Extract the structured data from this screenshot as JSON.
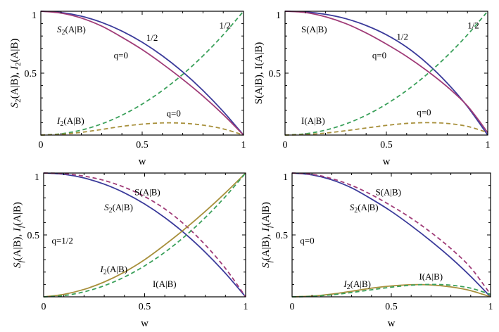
{
  "colors": {
    "blue": "#3a3a9a",
    "magenta": "#a03c78",
    "green": "#3aa05a",
    "olive": "#a8903c"
  },
  "chart_data": [
    {
      "type": "line",
      "panel": "top-left",
      "xlabel": "w",
      "ylabel": "S2(A|B), I2(A|B)",
      "xlim": [
        0,
        1
      ],
      "ylim": [
        0,
        1
      ],
      "xticks": [
        "0",
        "0.5",
        "1"
      ],
      "yticks": [
        "0.5",
        "1"
      ],
      "series": [
        {
          "color": "blue",
          "dash": false,
          "x": [
            0,
            0.1,
            0.2,
            0.3,
            0.4,
            0.5,
            0.6,
            0.7,
            0.8,
            0.9,
            1.0
          ],
          "y": [
            1,
            0.99,
            0.96,
            0.91,
            0.84,
            0.75,
            0.64,
            0.51,
            0.36,
            0.19,
            0
          ]
        },
        {
          "color": "magenta",
          "dash": false,
          "x": [
            0,
            0.1,
            0.2,
            0.3,
            0.4,
            0.5,
            0.6,
            0.7,
            0.8,
            0.9,
            1.0
          ],
          "y": [
            1,
            0.985,
            0.945,
            0.88,
            0.79,
            0.69,
            0.575,
            0.45,
            0.315,
            0.165,
            0
          ]
        },
        {
          "color": "green",
          "dash": true,
          "x": [
            0,
            0.1,
            0.2,
            0.3,
            0.4,
            0.5,
            0.6,
            0.7,
            0.8,
            0.9,
            1.0
          ],
          "y": [
            0,
            0.01,
            0.04,
            0.09,
            0.16,
            0.25,
            0.36,
            0.49,
            0.64,
            0.81,
            1
          ]
        },
        {
          "color": "olive",
          "dash": true,
          "x": [
            0,
            0.1,
            0.2,
            0.3,
            0.4,
            0.5,
            0.6,
            0.7,
            0.8,
            0.9,
            1.0
          ],
          "y": [
            0,
            0.006,
            0.022,
            0.045,
            0.07,
            0.088,
            0.098,
            0.096,
            0.08,
            0.05,
            0
          ]
        }
      ],
      "annotations": [
        {
          "text": "S",
          "sub": "2",
          "rest": "(A|B)",
          "x": 0.08,
          "y": 0.83
        },
        {
          "text": "1/2",
          "x": 0.52,
          "y": 0.76
        },
        {
          "text": "q=0",
          "x": 0.36,
          "y": 0.62
        },
        {
          "text": "1/2",
          "x": 0.88,
          "y": 0.86
        },
        {
          "text": "I",
          "sub": "2",
          "rest": "(A|B)",
          "x": 0.08,
          "y": 0.09
        },
        {
          "text": "q=0",
          "x": 0.62,
          "y": 0.15
        }
      ]
    },
    {
      "type": "line",
      "panel": "top-right",
      "xlabel": "w",
      "ylabel": "S(A|B), I(A|B)",
      "xlim": [
        0,
        1
      ],
      "ylim": [
        0,
        1
      ],
      "xticks": [
        "0",
        "0.5",
        "1"
      ],
      "yticks": [
        "0.5",
        "1"
      ],
      "series": [
        {
          "color": "blue",
          "dash": false,
          "x": [
            0,
            0.1,
            0.2,
            0.3,
            0.4,
            0.5,
            0.6,
            0.7,
            0.8,
            0.9,
            1.0
          ],
          "y": [
            1,
            0.995,
            0.975,
            0.94,
            0.885,
            0.81,
            0.71,
            0.58,
            0.42,
            0.23,
            0
          ]
        },
        {
          "color": "magenta",
          "dash": false,
          "x": [
            0,
            0.1,
            0.2,
            0.3,
            0.4,
            0.5,
            0.6,
            0.7,
            0.8,
            0.9,
            1.0
          ],
          "y": [
            1,
            0.99,
            0.955,
            0.9,
            0.825,
            0.735,
            0.635,
            0.52,
            0.39,
            0.235,
            0.02
          ]
        },
        {
          "color": "green",
          "dash": true,
          "x": [
            0,
            0.1,
            0.2,
            0.3,
            0.4,
            0.5,
            0.6,
            0.7,
            0.8,
            0.9,
            1.0
          ],
          "y": [
            0,
            0.01,
            0.04,
            0.09,
            0.16,
            0.25,
            0.36,
            0.49,
            0.64,
            0.81,
            1
          ]
        },
        {
          "color": "olive",
          "dash": true,
          "x": [
            0,
            0.1,
            0.2,
            0.3,
            0.4,
            0.5,
            0.6,
            0.7,
            0.8,
            0.9,
            1.0
          ],
          "y": [
            0,
            0.004,
            0.016,
            0.035,
            0.057,
            0.078,
            0.094,
            0.1,
            0.094,
            0.07,
            0.02
          ]
        }
      ],
      "annotations": [
        {
          "text": "S(A|B)",
          "x": 0.08,
          "y": 0.83
        },
        {
          "text": "1/2",
          "x": 0.55,
          "y": 0.77
        },
        {
          "text": "q=0",
          "x": 0.43,
          "y": 0.62
        },
        {
          "text": "1/2",
          "x": 0.9,
          "y": 0.86
        },
        {
          "text": "I(A|B)",
          "x": 0.08,
          "y": 0.09
        },
        {
          "text": "q=0",
          "x": 0.65,
          "y": 0.16
        }
      ]
    },
    {
      "type": "line",
      "panel": "bottom-left",
      "xlabel": "w",
      "ylabel": "Sf(A|B), If(A|B)",
      "xlim": [
        0,
        1
      ],
      "ylim": [
        0,
        1
      ],
      "xticks": [
        "0",
        "0.5",
        "1"
      ],
      "yticks": [
        "0.5",
        "1"
      ],
      "series": [
        {
          "color": "blue",
          "dash": false,
          "x": [
            0,
            0.1,
            0.2,
            0.3,
            0.4,
            0.5,
            0.6,
            0.7,
            0.8,
            0.9,
            1.0
          ],
          "y": [
            1,
            0.99,
            0.96,
            0.91,
            0.84,
            0.75,
            0.64,
            0.51,
            0.36,
            0.19,
            0
          ]
        },
        {
          "color": "magenta",
          "dash": true,
          "x": [
            0,
            0.1,
            0.2,
            0.3,
            0.4,
            0.5,
            0.6,
            0.7,
            0.8,
            0.9,
            1.0
          ],
          "y": [
            1,
            0.995,
            0.975,
            0.94,
            0.885,
            0.81,
            0.71,
            0.58,
            0.42,
            0.23,
            0
          ]
        },
        {
          "color": "olive",
          "dash": false,
          "x": [
            0,
            0.1,
            0.2,
            0.3,
            0.4,
            0.5,
            0.6,
            0.7,
            0.8,
            0.9,
            1.0
          ],
          "y": [
            0,
            0.02,
            0.06,
            0.12,
            0.2,
            0.3,
            0.42,
            0.55,
            0.69,
            0.84,
            1
          ]
        },
        {
          "color": "green",
          "dash": true,
          "x": [
            0,
            0.1,
            0.2,
            0.3,
            0.4,
            0.5,
            0.6,
            0.7,
            0.8,
            0.9,
            1.0
          ],
          "y": [
            0,
            0.01,
            0.04,
            0.09,
            0.16,
            0.25,
            0.36,
            0.49,
            0.64,
            0.81,
            1
          ]
        }
      ],
      "annotations": [
        {
          "text": "S(A|B)",
          "x": 0.45,
          "y": 0.82
        },
        {
          "text": "S",
          "sub": "2",
          "rest": "(A|B)",
          "x": 0.3,
          "y": 0.7
        },
        {
          "text": "q=1/2",
          "x": 0.04,
          "y": 0.43
        },
        {
          "text": "I",
          "sub": "2",
          "rest": "(A|B)",
          "x": 0.28,
          "y": 0.2
        },
        {
          "text": "I(A|B)",
          "x": 0.54,
          "y": 0.08
        }
      ]
    },
    {
      "type": "line",
      "panel": "bottom-right",
      "xlabel": "w",
      "ylabel": "Sf(A|B), If(A|B)",
      "xlim": [
        0,
        1
      ],
      "ylim": [
        0,
        1
      ],
      "xticks": [
        "0",
        "0.5",
        "1"
      ],
      "yticks": [
        "0.5",
        "1"
      ],
      "series": [
        {
          "color": "blue",
          "dash": false,
          "x": [
            0,
            0.1,
            0.2,
            0.3,
            0.4,
            0.5,
            0.6,
            0.7,
            0.8,
            0.9,
            1.0
          ],
          "y": [
            1,
            0.985,
            0.945,
            0.88,
            0.79,
            0.69,
            0.575,
            0.45,
            0.315,
            0.165,
            0
          ]
        },
        {
          "color": "magenta",
          "dash": true,
          "x": [
            0,
            0.1,
            0.2,
            0.3,
            0.4,
            0.5,
            0.6,
            0.7,
            0.8,
            0.9,
            1.0
          ],
          "y": [
            1,
            0.99,
            0.955,
            0.9,
            0.825,
            0.735,
            0.635,
            0.52,
            0.39,
            0.235,
            0.02
          ]
        },
        {
          "color": "olive",
          "dash": false,
          "x": [
            0,
            0.1,
            0.2,
            0.3,
            0.4,
            0.5,
            0.6,
            0.7,
            0.8,
            0.9,
            1.0
          ],
          "y": [
            0,
            0.006,
            0.022,
            0.045,
            0.07,
            0.088,
            0.098,
            0.096,
            0.08,
            0.05,
            0
          ]
        },
        {
          "color": "green",
          "dash": true,
          "x": [
            0,
            0.1,
            0.2,
            0.3,
            0.4,
            0.5,
            0.6,
            0.7,
            0.8,
            0.9,
            1.0
          ],
          "y": [
            0,
            0.004,
            0.016,
            0.035,
            0.057,
            0.078,
            0.094,
            0.1,
            0.094,
            0.07,
            0.02
          ]
        }
      ],
      "annotations": [
        {
          "text": "S(A|B)",
          "x": 0.42,
          "y": 0.82
        },
        {
          "text": "S",
          "sub": "2",
          "rest": "(A|B)",
          "x": 0.29,
          "y": 0.7
        },
        {
          "text": "q=0",
          "x": 0.04,
          "y": 0.43
        },
        {
          "text": "I",
          "sub": "2",
          "rest": "(A|B)",
          "x": 0.26,
          "y": 0.08
        },
        {
          "text": "I(A|B)",
          "x": 0.64,
          "y": 0.14
        }
      ]
    }
  ]
}
